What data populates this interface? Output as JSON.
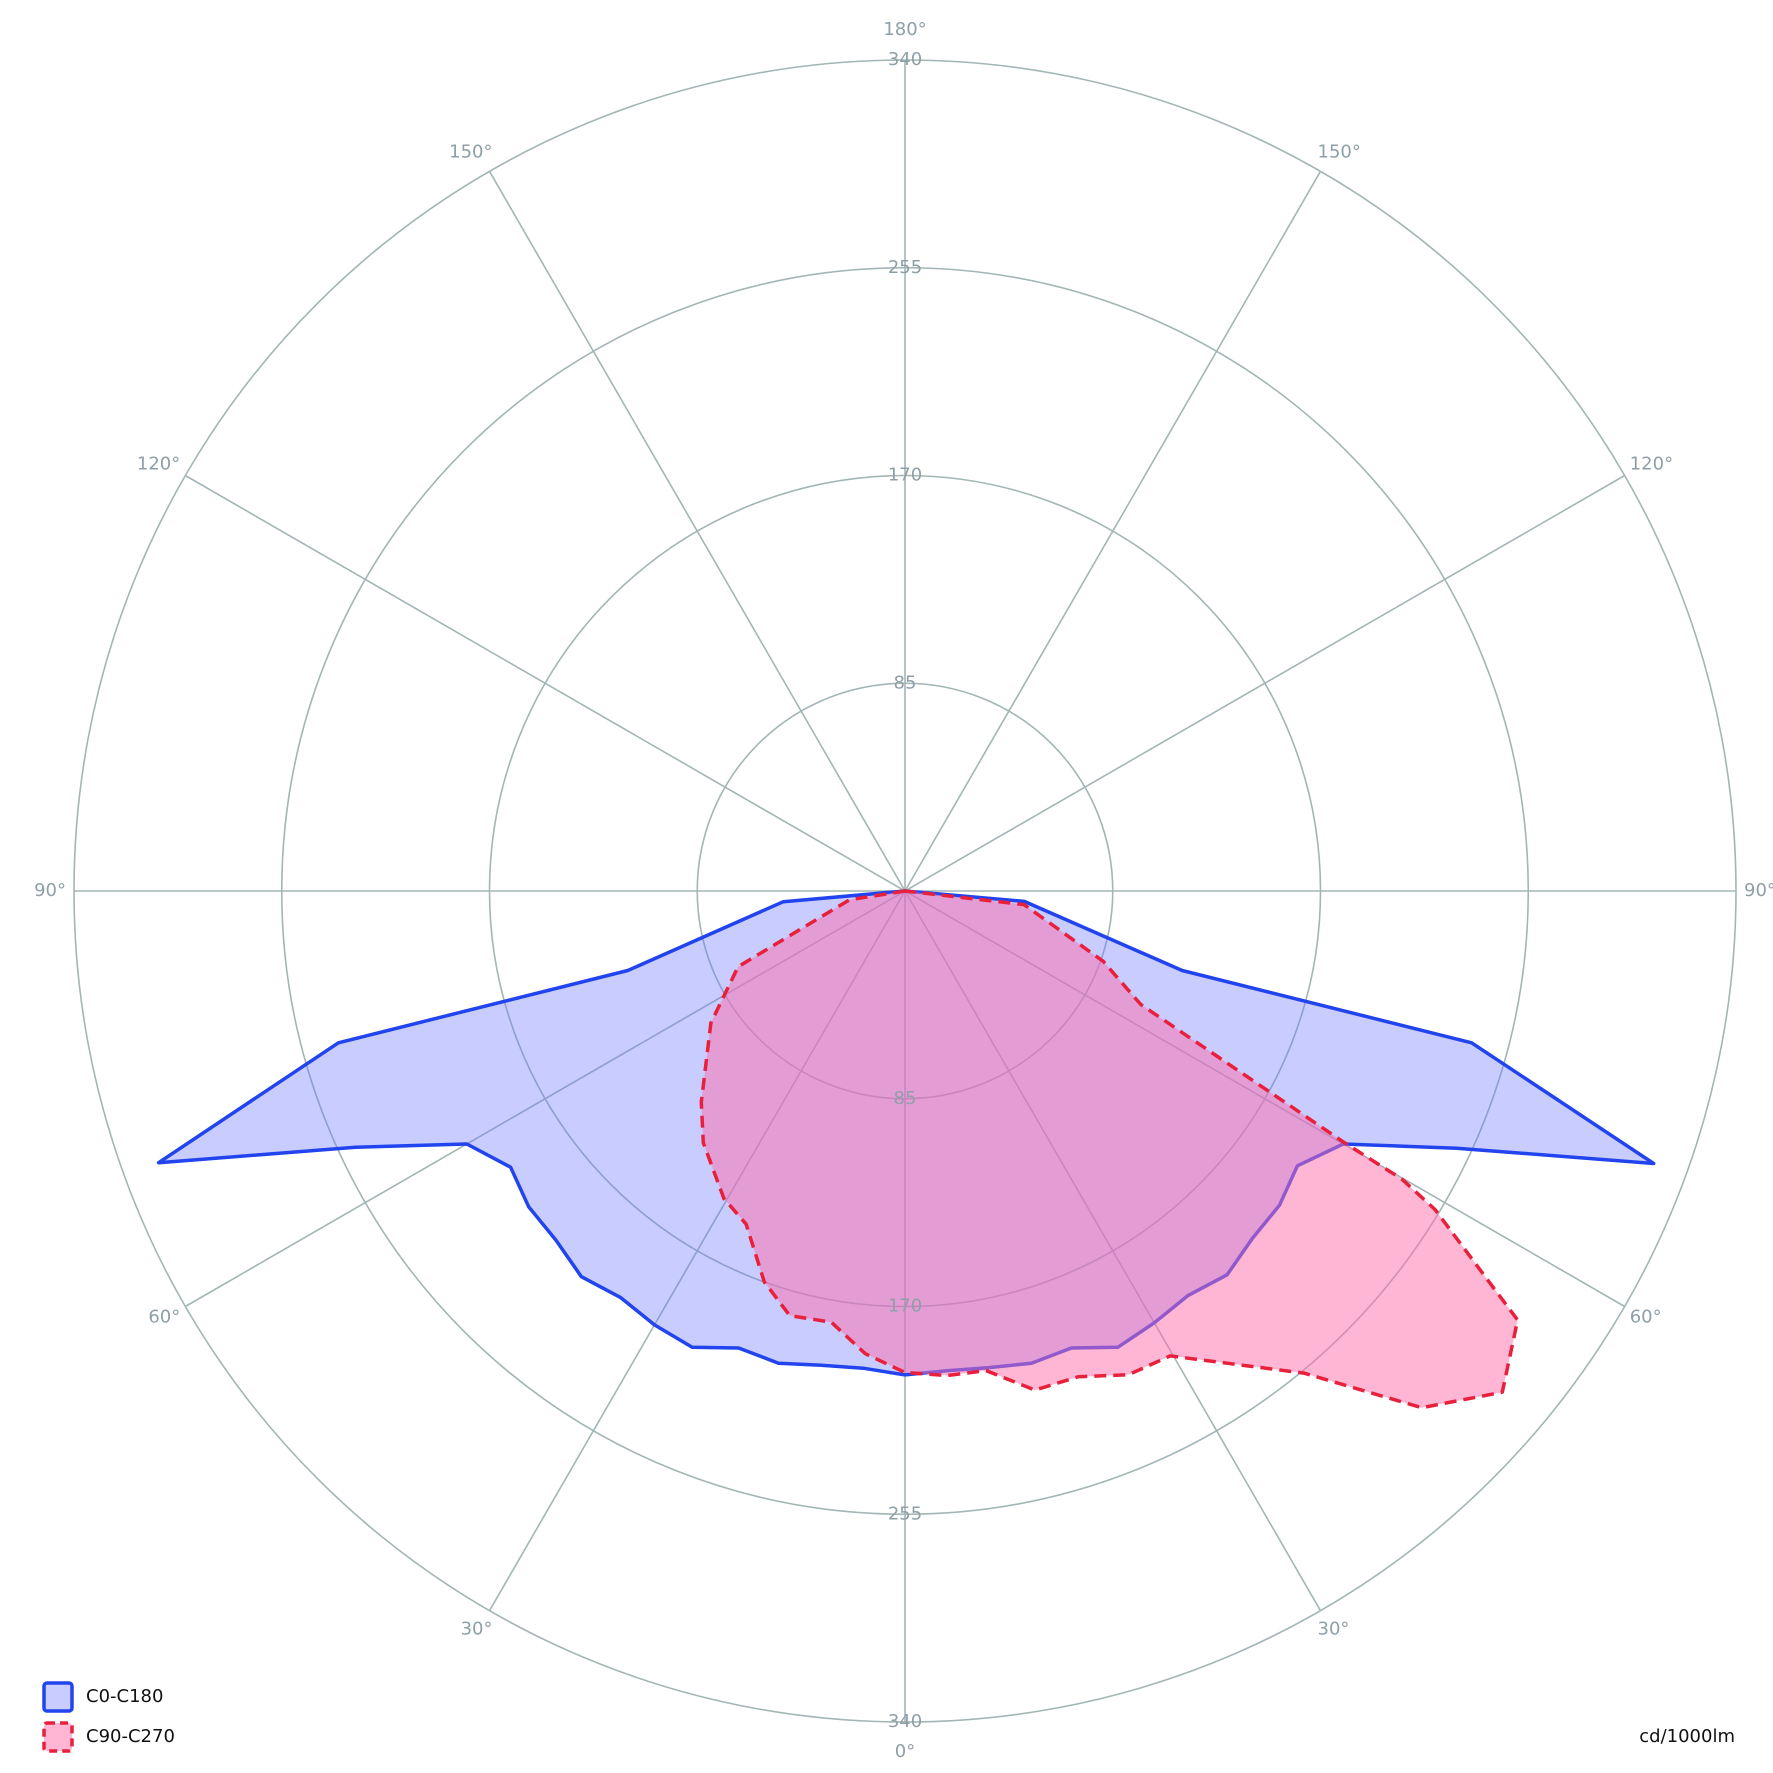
{
  "chart_data": {
    "type": "polar",
    "unit_label": "cd/1000lm",
    "rlim": [
      0,
      340
    ],
    "rticks": [
      85,
      170,
      255,
      340
    ],
    "angle_ticks": [
      {
        "value": 0,
        "label": "0°"
      },
      {
        "value": 30,
        "label": "30°"
      },
      {
        "value": 60,
        "label": "60°"
      },
      {
        "value": 90,
        "label": "90°"
      },
      {
        "value": 120,
        "label": "120°"
      },
      {
        "value": 150,
        "label": "150°"
      },
      {
        "value": 180,
        "label": "180°"
      }
    ],
    "legend_position": "bottom-left",
    "series": [
      {
        "name": "C0-C180",
        "color": "#2244ee",
        "fill": "rgba(110,120,255,0.38)",
        "dashed": false,
        "theta": [
          -90,
          -85,
          -74,
          -75,
          -70,
          -65,
          -60,
          -55,
          -50,
          -45,
          -40,
          -35,
          -30,
          -25,
          -20,
          -15,
          -10,
          -5,
          0,
          5,
          10,
          15,
          20,
          25,
          30,
          35,
          40,
          45,
          50,
          55,
          60,
          65,
          70,
          75,
          74,
          85,
          90
        ],
        "values": [
          0,
          50,
          118,
          240,
          325,
          248,
          207,
          197,
          201,
          202,
          206,
          203,
          205,
          206,
          199,
          200,
          197,
          196,
          198,
          197,
          198,
          200,
          199,
          206,
          204,
          202,
          205,
          201,
          200,
          196,
          207,
          249,
          326,
          240,
          118,
          49,
          0
        ]
      },
      {
        "name": "C90-C270",
        "color": "#e8203c",
        "fill": "rgba(255,110,170,0.5)",
        "dashed": true,
        "theta": [
          -90,
          -81,
          -65.6,
          -55.8,
          -44,
          -38.7,
          -30.5,
          -25.5,
          -19.8,
          -15.2,
          -9.7,
          -4.9,
          0,
          5,
          9.6,
          14.6,
          19.6,
          24.8,
          29.7,
          39.6,
          45,
          50,
          55,
          59,
          59.9,
          60.2,
          64.3,
          70.5,
          83.5,
          90
        ],
        "values": [
          0,
          23,
          75,
          96,
          120,
          132,
          146,
          151,
          170,
          180,
          179,
          190,
          197,
          199,
          199,
          211,
          211,
          218,
          219,
          256,
          299,
          319,
          306,
          253,
          235,
          207,
          107,
          86,
          49,
          0
        ]
      }
    ]
  }
}
